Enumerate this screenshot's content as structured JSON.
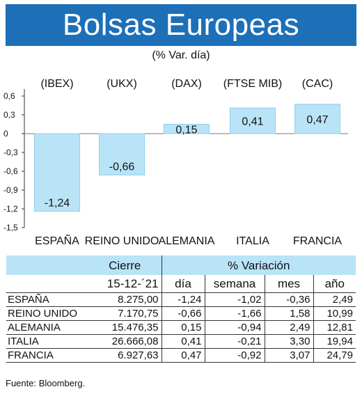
{
  "title": "Bolsas Europeas",
  "subtitle": "(% Var. día)",
  "source": "Fuente: Bloomberg.",
  "colors": {
    "title_bg": "#1d6fb8",
    "bar": "#b9e3f7",
    "bar_border": "#8fd0ee",
    "table_header": "#b9e3f7"
  },
  "chart_data": {
    "type": "bar",
    "categories": [
      "ESPAÑA",
      "REINO UNIDO",
      "ALEMANIA",
      "ITALIA",
      "FRANCIA"
    ],
    "index_labels": [
      "(IBEX)",
      "(UKX)",
      "(DAX)",
      "(FTSE MIB)",
      "(CAC)"
    ],
    "values": [
      -1.24,
      -0.66,
      0.15,
      0.41,
      0.47
    ],
    "value_labels": [
      "-1,24",
      "-0,66",
      "0,15",
      "0,41",
      "0,47"
    ],
    "yticks": [
      0.6,
      0.3,
      0,
      -0.3,
      -0.6,
      -0.9,
      -1.2,
      -1.5
    ],
    "ytick_labels": [
      "0,6",
      "0,3",
      "0",
      "-0,3",
      "-0,6",
      "-0,9",
      "-1,2",
      "-1,5"
    ],
    "ylim": [
      -1.5,
      0.6
    ],
    "grid": false
  },
  "table": {
    "group_headers": [
      "Cierre",
      "% Variación"
    ],
    "subheaders": [
      "15-12-´21",
      "día",
      "semana",
      "mes",
      "año"
    ],
    "rows": [
      {
        "name": "ESPAÑA",
        "cierre": "8.275,00",
        "dia": "-1,24",
        "semana": "-1,02",
        "mes": "-0,36",
        "ano": "2,49"
      },
      {
        "name": "REINO UNIDO",
        "cierre": "7.170,75",
        "dia": "-0,66",
        "semana": "-1,66",
        "mes": "1,58",
        "ano": "10,99"
      },
      {
        "name": "ALEMANIA",
        "cierre": "15.476,35",
        "dia": "0,15",
        "semana": "-0,94",
        "mes": "2,49",
        "ano": "12,81"
      },
      {
        "name": "ITALIA",
        "cierre": "26.666,08",
        "dia": "0,41",
        "semana": "-0,21",
        "mes": "3,30",
        "ano": "19,94"
      },
      {
        "name": "FRANCIA",
        "cierre": "6.927,63",
        "dia": "0,47",
        "semana": "-0,92",
        "mes": "3,07",
        "ano": "24,79"
      }
    ]
  }
}
